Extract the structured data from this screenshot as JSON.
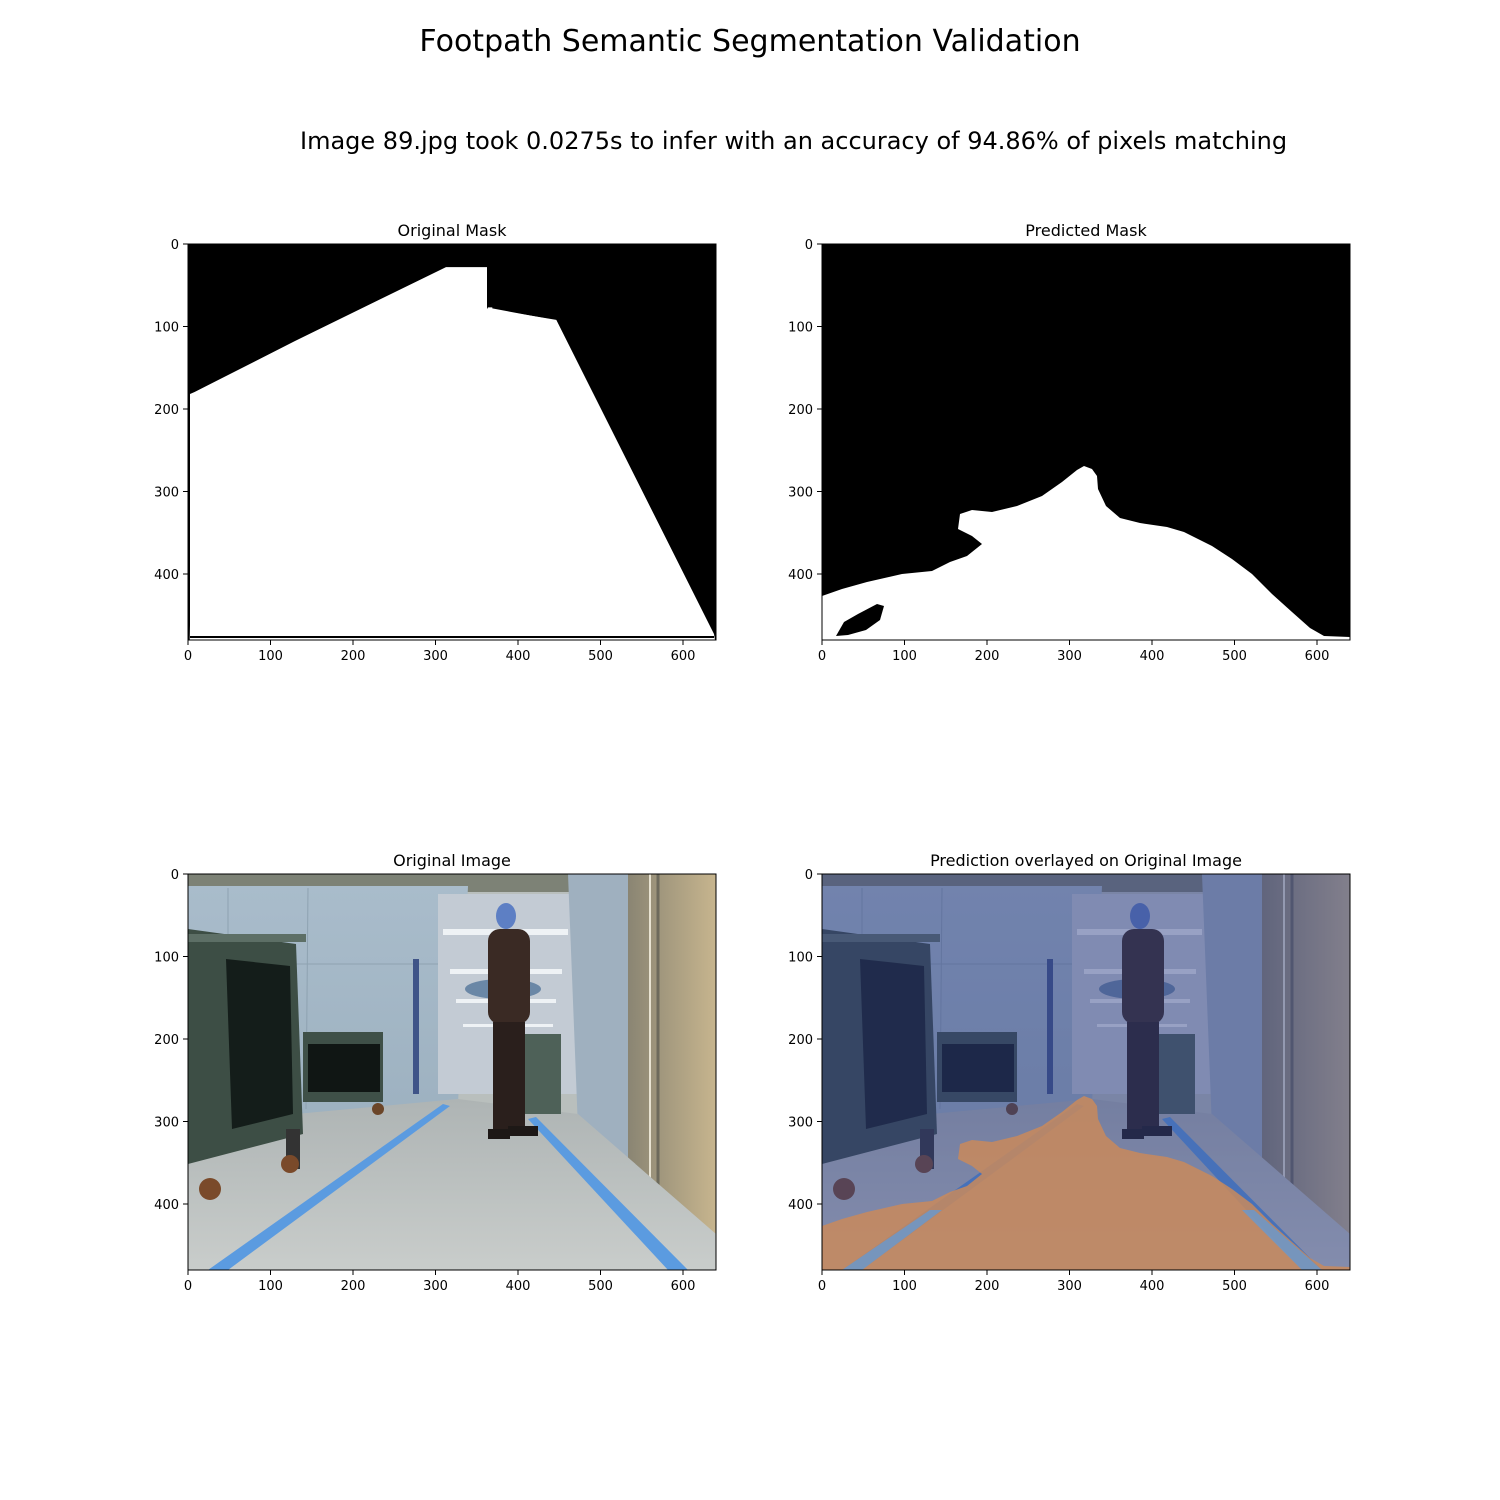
{
  "figure": {
    "title": "Footpath Semantic Segmentation Validation",
    "subtitle": "Image 89.jpg took 0.0275s to infer with an accuracy of 94.86% of pixels matching"
  },
  "panels": [
    {
      "title": "Original Mask",
      "kind": "mask-original"
    },
    {
      "title": "Predicted Mask",
      "kind": "mask-predicted"
    },
    {
      "title": "Original Image",
      "kind": "photo"
    },
    {
      "title": "Prediction overlayed on Original Image",
      "kind": "photo-overlay"
    }
  ],
  "axes": {
    "x_ticks": [
      0,
      100,
      200,
      300,
      400,
      500,
      600
    ],
    "y_ticks": [
      0,
      100,
      200,
      300,
      400
    ],
    "x_range": [
      0,
      640
    ],
    "y_range": [
      0,
      480
    ]
  },
  "colors": {
    "mask_background": "#000000",
    "mask_foreground": "#ffffff",
    "overlay_footpath": "#c98a5c",
    "floor_tape": "#5b9be0"
  }
}
